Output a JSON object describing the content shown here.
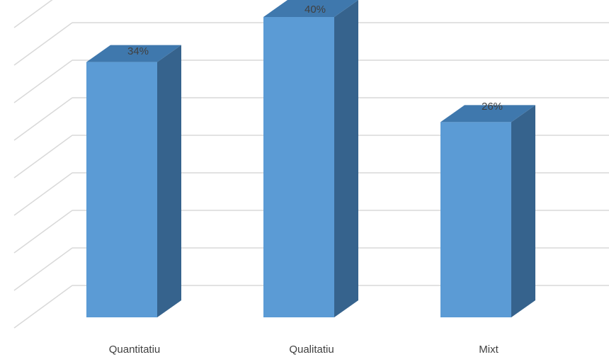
{
  "chart_data": {
    "type": "bar",
    "style": "3d-column",
    "categories": [
      "Quantitatiu",
      "Qualitatiu",
      "Mixt"
    ],
    "values": [
      34,
      40,
      26
    ],
    "data_labels": [
      "34%",
      "40%",
      "26%"
    ],
    "ylim": [
      0,
      45
    ],
    "grid": true,
    "legend": "none",
    "colors": {
      "front": "#5b9bd5",
      "top": "#3f78ad",
      "side": "#36638d",
      "grid": "#d9d9d9"
    }
  }
}
